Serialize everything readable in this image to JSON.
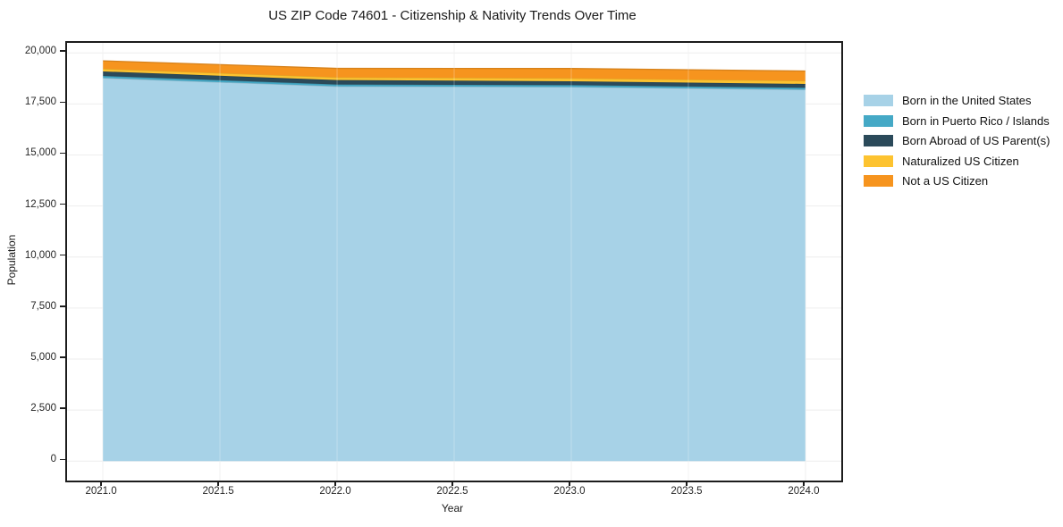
{
  "title": "US ZIP Code 74601 - Citizenship & Nativity Trends Over Time",
  "chart_data": {
    "type": "area",
    "stacked": true,
    "title": "US ZIP Code 74601 - Citizenship & Nativity Trends Over Time",
    "xlabel": "Year",
    "ylabel": "Population",
    "x": [
      2021,
      2022,
      2023,
      2024
    ],
    "series": [
      {
        "name": "Born in the United States",
        "color": "#A7D2E7",
        "values": [
          18770,
          18360,
          18330,
          18200
        ]
      },
      {
        "name": "Born in Puerto Rico / Islands",
        "color": "#45A9C6",
        "values": [
          100,
          90,
          90,
          90
        ]
      },
      {
        "name": "Born Abroad of US Parent(s)",
        "color": "#2B4A5A",
        "values": [
          220,
          220,
          190,
          190
        ]
      },
      {
        "name": "Naturalized US Citizen",
        "color": "#FDC330",
        "values": [
          130,
          130,
          145,
          150
        ]
      },
      {
        "name": "Not a US Citizen",
        "color": "#F6941E",
        "values": [
          390,
          440,
          480,
          480
        ]
      }
    ],
    "x_ticks": [
      "2021.0",
      "2021.5",
      "2022.0",
      "2022.5",
      "2023.0",
      "2023.5",
      "2024.0"
    ],
    "x_tick_values": [
      2021,
      2021.5,
      2022,
      2022.5,
      2023,
      2023.5,
      2024
    ],
    "y_ticks": [
      "0",
      "2,500",
      "5,000",
      "7,500",
      "10,000",
      "12,500",
      "15,000",
      "17,500",
      "20,000"
    ],
    "y_tick_values": [
      0,
      2500,
      5000,
      7500,
      10000,
      12500,
      15000,
      17500,
      20000
    ],
    "xlim": [
      2020.847,
      2024.153
    ],
    "ylim": [
      -950,
      20490
    ],
    "grid": true,
    "legend_position": "right",
    "gridline_color": "#ededed",
    "axis_color": "#1c1c1c"
  }
}
